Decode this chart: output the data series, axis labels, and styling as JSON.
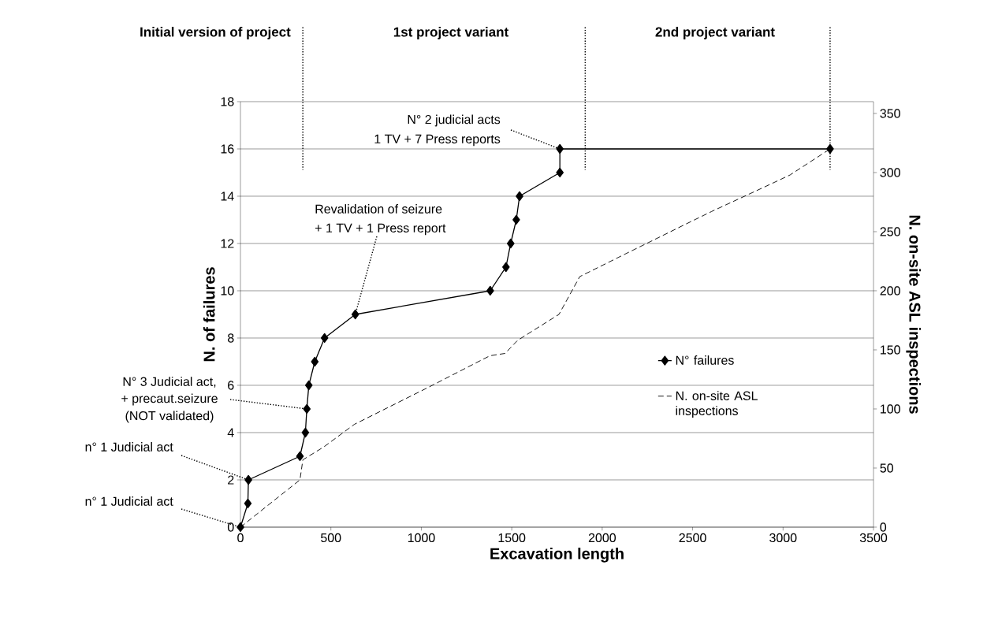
{
  "chart_data": {
    "type": "line",
    "xlabel": "Excavation length",
    "ylabel": "N. of failures",
    "y2label": "N. on-site ASL inspections",
    "xlim": [
      0,
      3500
    ],
    "xticks": [
      0,
      500,
      1000,
      1500,
      2000,
      2500,
      3000,
      3500
    ],
    "ylim": [
      0,
      18
    ],
    "yticks": [
      0,
      2,
      4,
      6,
      8,
      10,
      12,
      14,
      16,
      18
    ],
    "y2lim": [
      0,
      360
    ],
    "y2ticks": [
      0,
      50,
      100,
      150,
      200,
      250,
      300,
      350
    ],
    "grid": "y",
    "legend": "right",
    "series": [
      {
        "name": "N° failures",
        "color": "#000000",
        "marker": "diamond",
        "line_style": "solid",
        "x": [
          0,
          41,
          44,
          329,
          359,
          367,
          378,
          411,
          465,
          635,
          1381,
          1468,
          1494,
          1525,
          1543,
          1766,
          1766,
          3260
        ],
        "values": [
          0,
          1,
          2,
          3,
          4,
          5,
          6,
          7,
          8,
          9,
          10,
          11,
          12,
          13,
          14,
          15,
          16,
          16
        ]
      },
      {
        "name": "N. on-site ASL inspections",
        "color": "#000000",
        "marker": "none",
        "line_style": "dashed",
        "axis": "y2",
        "x": [
          0,
          329,
          345,
          462,
          630,
          1035,
          1379,
          1463,
          1532,
          1761,
          1876,
          2113,
          2457,
          2604,
          2928,
          3039,
          3260
        ],
        "values": [
          0,
          40,
          57,
          68,
          87,
          118,
          145,
          147,
          158,
          180,
          212,
          230,
          256,
          267,
          290,
          298,
          320
        ]
      }
    ],
    "ref_lines": [
      {
        "axis": "x",
        "value": 345,
        "line_style": "dotted"
      },
      {
        "axis": "x",
        "value": 1906,
        "line_style": "dotted"
      },
      {
        "axis": "x",
        "value": 3260,
        "line_style": "dotted"
      }
    ],
    "annotations": [
      {
        "text": "N° 2 judicial acts",
        "x": 1766,
        "y": 16
      },
      "1 TV + 7 Press reports",
      "Revalidation of seizure",
      {
        "text": "+ 1 TV + 1 Press report",
        "x": 635,
        "y": 9
      },
      "N° 3 Judicial act,",
      {
        "text": "+ precaut.seizure",
        "x": 367,
        "y": 5
      },
      "(NOT validated)",
      {
        "text": "n° 1 Judicial act",
        "x": 44,
        "y": 2
      },
      {
        "text": "n° 1 Judicial act",
        "x": 0,
        "y": 0
      },
      "Initial version of project",
      "1st project variant",
      "2nd project variant"
    ]
  }
}
